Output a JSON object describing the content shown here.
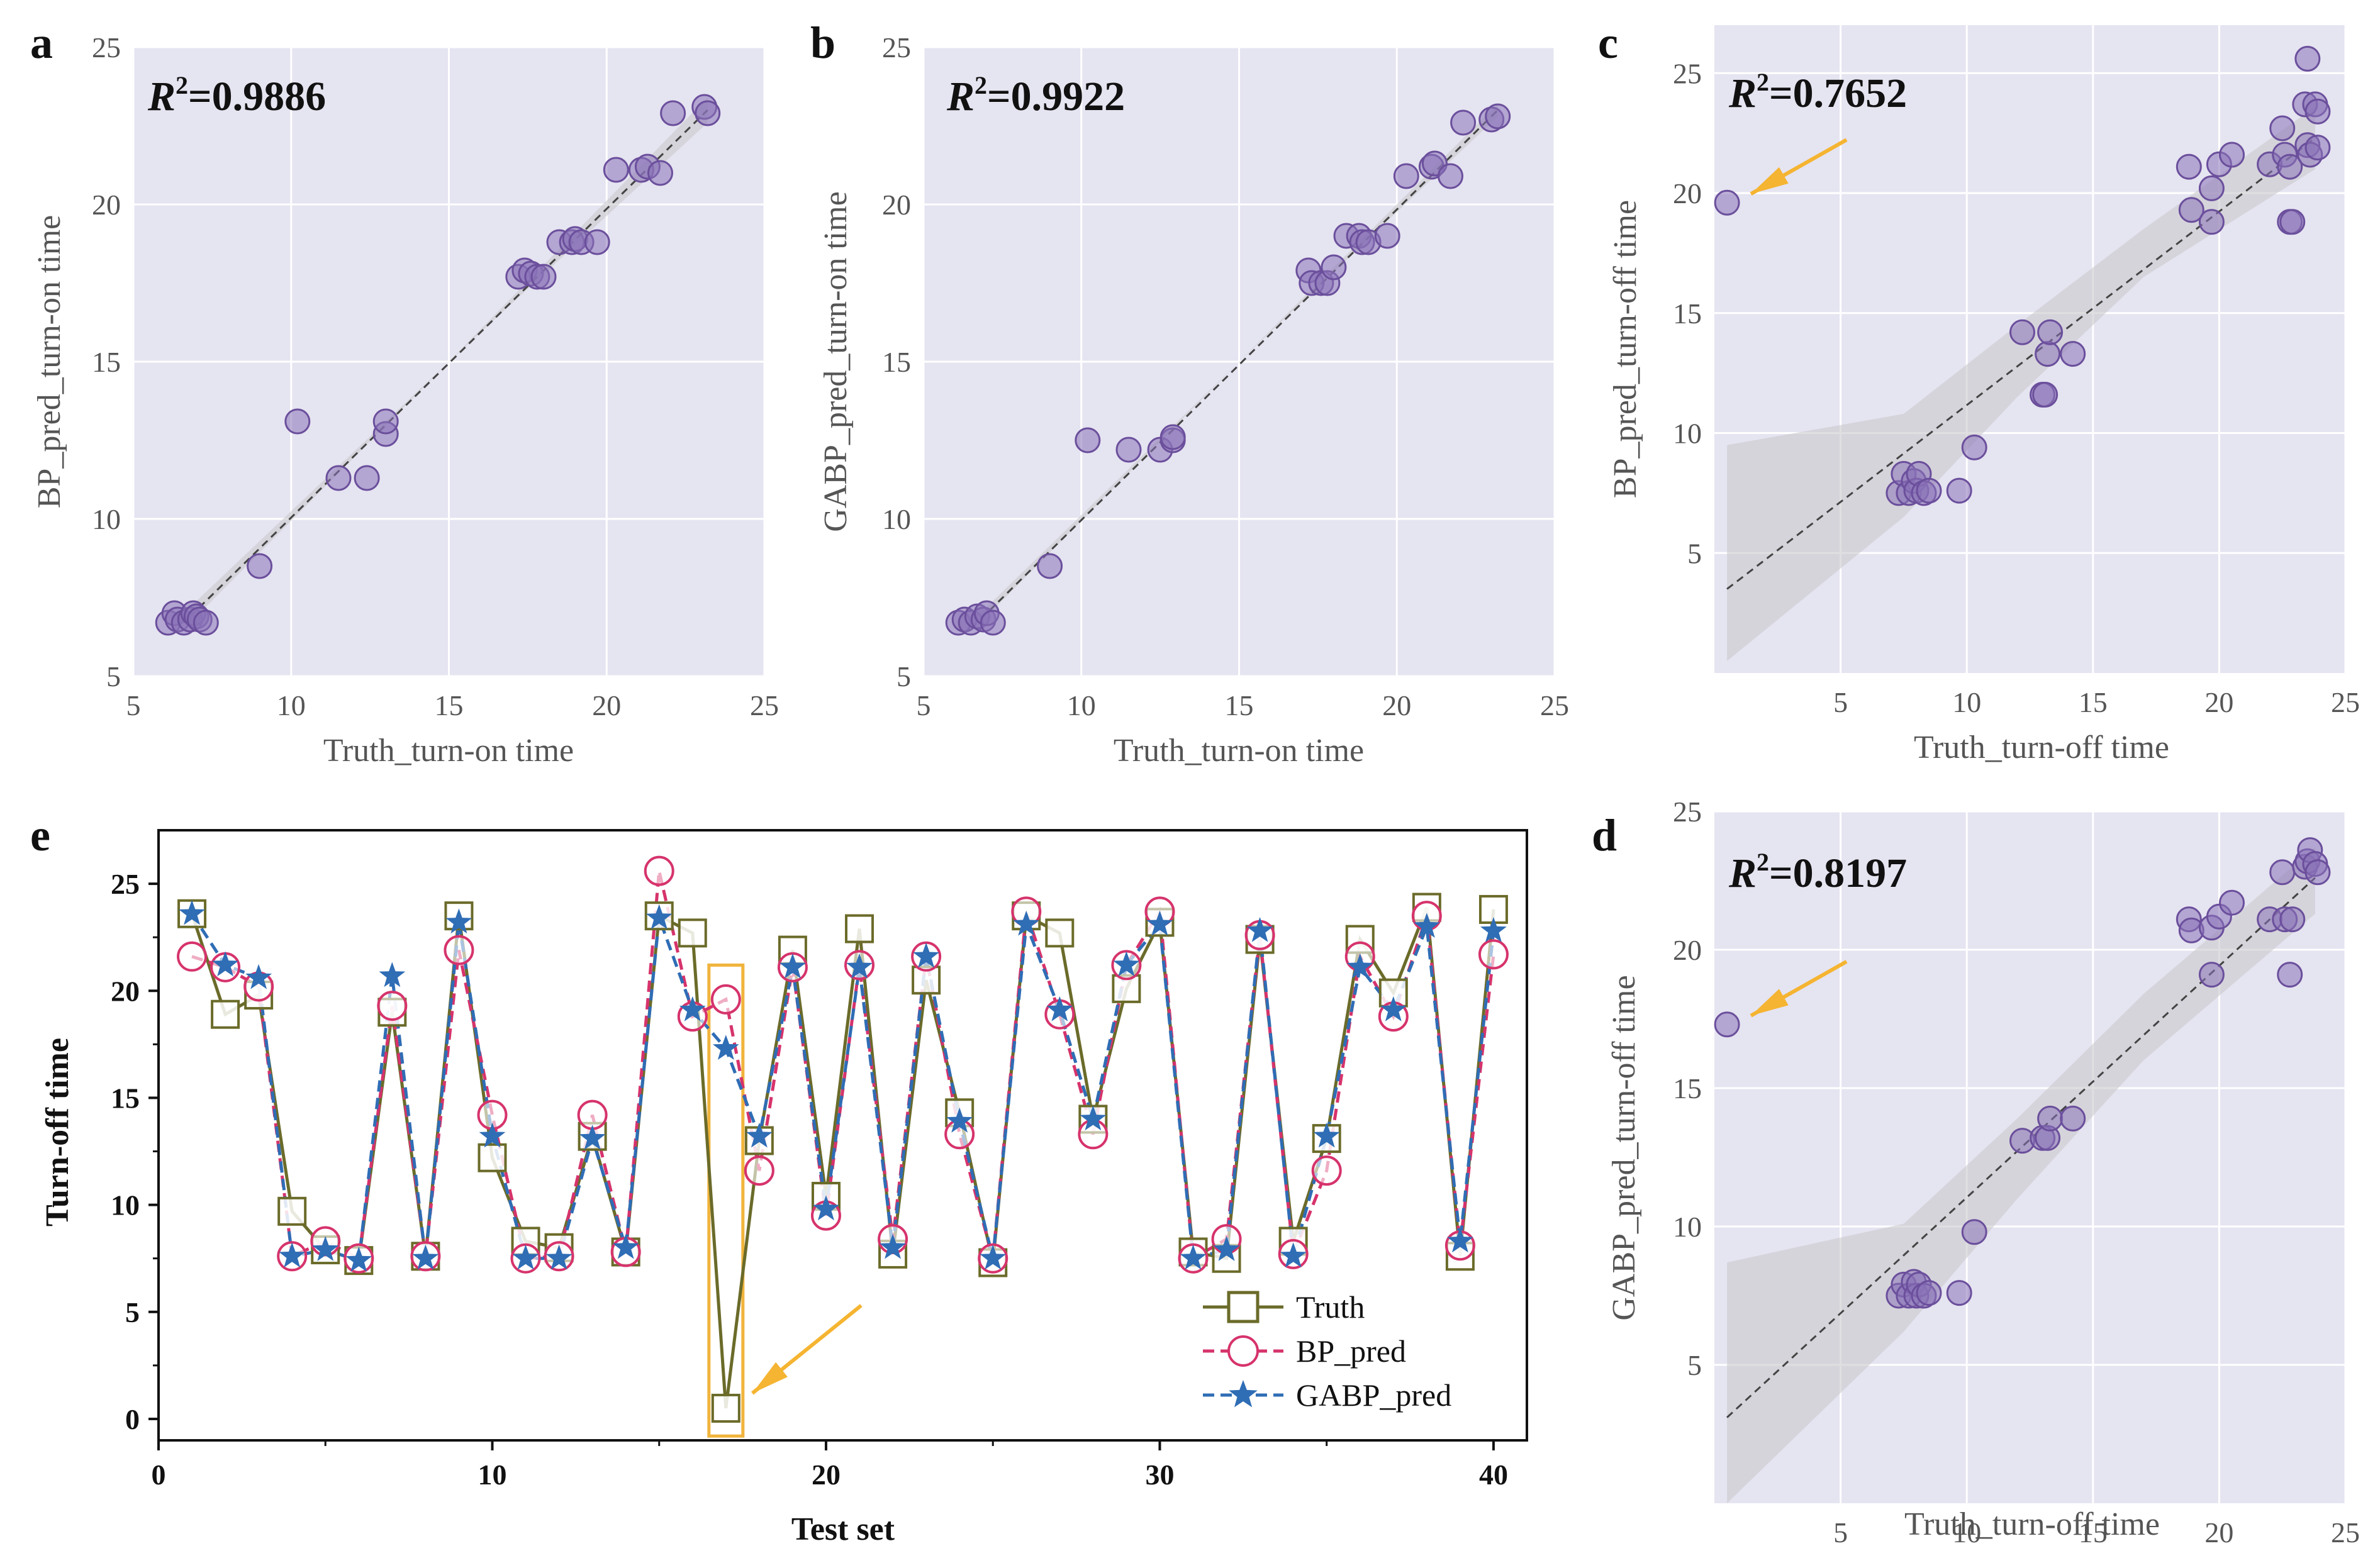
{
  "panels": [
    {
      "id": "a",
      "label": "a",
      "r2_prefix": "R",
      "r2_sup": "2",
      "r2_value": "=0.9886",
      "xlabel": "Truth_turn-on time",
      "ylabel": "BP_pred_turn-on time",
      "xlim": [
        5,
        25
      ],
      "ylim": [
        5,
        25
      ],
      "xticks": [
        5,
        10,
        15,
        20,
        25
      ],
      "yticks": [
        5,
        10,
        15,
        20,
        25
      ],
      "fit": [
        [
          6.8,
          6.9
        ],
        [
          23.2,
          23.0
        ]
      ],
      "band": [
        [
          6.8,
          6.7,
          7.2
        ],
        [
          15,
          15.0,
          15.0
        ],
        [
          23.2,
          22.6,
          23.4
        ]
      ],
      "points": [
        [
          6.1,
          6.7
        ],
        [
          6.3,
          7.0
        ],
        [
          6.4,
          6.8
        ],
        [
          6.6,
          6.7
        ],
        [
          6.8,
          6.8
        ],
        [
          6.9,
          7.0
        ],
        [
          7.0,
          6.9
        ],
        [
          7.1,
          6.8
        ],
        [
          7.3,
          6.7
        ],
        [
          9.0,
          8.5
        ],
        [
          10.2,
          13.1
        ],
        [
          11.5,
          11.3
        ],
        [
          12.4,
          11.3
        ],
        [
          13.0,
          12.7
        ],
        [
          13.0,
          13.1
        ],
        [
          17.2,
          17.7
        ],
        [
          17.4,
          17.9
        ],
        [
          17.6,
          17.8
        ],
        [
          17.8,
          17.7
        ],
        [
          18.0,
          17.7
        ],
        [
          18.5,
          18.8
        ],
        [
          18.9,
          18.8
        ],
        [
          19.0,
          18.9
        ],
        [
          19.2,
          18.8
        ],
        [
          19.7,
          18.8
        ],
        [
          20.3,
          21.1
        ],
        [
          21.1,
          21.1
        ],
        [
          21.3,
          21.2
        ],
        [
          21.7,
          21.0
        ],
        [
          22.1,
          22.9
        ],
        [
          23.1,
          23.1
        ],
        [
          23.2,
          22.9
        ]
      ]
    },
    {
      "id": "b",
      "label": "b",
      "r2_prefix": "R",
      "r2_sup": "2",
      "r2_value": "=0.9922",
      "xlabel": "Truth_turn-on time",
      "ylabel": "GABP_pred_turn-on time",
      "xlim": [
        5,
        25
      ],
      "ylim": [
        5,
        25
      ],
      "xticks": [
        5,
        10,
        15,
        20,
        25
      ],
      "yticks": [
        5,
        10,
        15,
        20,
        25
      ],
      "fit": [
        [
          6.8,
          6.8
        ],
        [
          23.2,
          23.0
        ]
      ],
      "band": [
        [
          6.8,
          6.7,
          7.0
        ],
        [
          15,
          15.0,
          15.0
        ],
        [
          23.2,
          22.8,
          23.2
        ]
      ],
      "points": [
        [
          6.1,
          6.7
        ],
        [
          6.3,
          6.8
        ],
        [
          6.5,
          6.7
        ],
        [
          6.7,
          6.9
        ],
        [
          6.9,
          6.8
        ],
        [
          7.0,
          7.0
        ],
        [
          7.2,
          6.7
        ],
        [
          9.0,
          8.5
        ],
        [
          10.2,
          12.5
        ],
        [
          11.5,
          12.2
        ],
        [
          12.5,
          12.2
        ],
        [
          12.9,
          12.5
        ],
        [
          12.9,
          12.6
        ],
        [
          17.2,
          17.9
        ],
        [
          17.3,
          17.5
        ],
        [
          17.6,
          17.5
        ],
        [
          17.8,
          17.5
        ],
        [
          18.0,
          18.0
        ],
        [
          18.4,
          19.0
        ],
        [
          18.8,
          19.0
        ],
        [
          18.9,
          18.8
        ],
        [
          19.1,
          18.8
        ],
        [
          19.7,
          19.0
        ],
        [
          20.3,
          20.9
        ],
        [
          21.1,
          21.2
        ],
        [
          21.2,
          21.3
        ],
        [
          21.7,
          20.9
        ],
        [
          22.1,
          22.6
        ],
        [
          23.0,
          22.7
        ],
        [
          23.2,
          22.8
        ]
      ]
    },
    {
      "id": "c",
      "label": "c",
      "r2_prefix": "R",
      "r2_sup": "2",
      "r2_value": "=0.7652",
      "xlabel": "Truth_turn-off time",
      "ylabel": "BP_pred_turn-off time",
      "xlim": [
        0,
        25
      ],
      "ylim": [
        0,
        27
      ],
      "xticks": [
        5,
        10,
        15,
        20,
        25
      ],
      "yticks": [
        5,
        10,
        15,
        20,
        25
      ],
      "fit": [
        [
          0.5,
          3.5
        ],
        [
          23.8,
          22.3
        ]
      ],
      "band": [
        [
          0.5,
          0.5,
          9.5
        ],
        [
          7.5,
          6.5,
          10.8
        ],
        [
          12.0,
          11.5,
          14.5
        ],
        [
          17.0,
          16.5,
          18.5
        ],
        [
          23.8,
          21.0,
          23.6
        ]
      ],
      "points": [
        [
          0.5,
          19.6
        ],
        [
          7.3,
          7.5
        ],
        [
          7.5,
          8.3
        ],
        [
          7.7,
          7.5
        ],
        [
          7.9,
          8.0
        ],
        [
          8.0,
          7.6
        ],
        [
          8.1,
          8.3
        ],
        [
          8.3,
          7.5
        ],
        [
          8.5,
          7.6
        ],
        [
          9.7,
          7.6
        ],
        [
          10.3,
          9.4
        ],
        [
          12.2,
          14.2
        ],
        [
          13.0,
          11.6
        ],
        [
          13.1,
          11.6
        ],
        [
          13.2,
          13.3
        ],
        [
          13.3,
          14.2
        ],
        [
          14.2,
          13.3
        ],
        [
          18.8,
          21.1
        ],
        [
          18.9,
          19.3
        ],
        [
          19.7,
          18.8
        ],
        [
          19.7,
          20.2
        ],
        [
          20.0,
          21.2
        ],
        [
          20.5,
          21.6
        ],
        [
          22.0,
          21.2
        ],
        [
          22.5,
          22.7
        ],
        [
          22.6,
          21.6
        ],
        [
          22.8,
          18.8
        ],
        [
          22.8,
          21.1
        ],
        [
          22.9,
          18.8
        ],
        [
          23.4,
          23.7
        ],
        [
          23.5,
          22.0
        ],
        [
          23.5,
          25.6
        ],
        [
          23.6,
          21.6
        ],
        [
          23.8,
          23.7
        ],
        [
          23.9,
          21.9
        ],
        [
          23.9,
          23.4
        ]
      ]
    },
    {
      "id": "d",
      "label": "d",
      "r2_prefix": "R",
      "r2_sup": "2",
      "r2_value": "=0.8197",
      "xlabel": "Truth_turn-off time",
      "ylabel": "GABP_pred_turn-off time",
      "xlim": [
        0,
        25
      ],
      "ylim": [
        0,
        25
      ],
      "xticks": [
        5,
        10,
        15,
        20,
        25
      ],
      "yticks": [
        5,
        10,
        15,
        20,
        25
      ],
      "fit": [
        [
          0.5,
          3.1
        ],
        [
          23.8,
          22.6
        ]
      ],
      "band": [
        [
          0.5,
          0.0,
          8.7
        ],
        [
          7.5,
          6.2,
          10.1
        ],
        [
          12.0,
          11.0,
          13.9
        ],
        [
          17.0,
          16.0,
          18.4
        ],
        [
          23.8,
          21.3,
          23.7
        ]
      ],
      "points": [
        [
          0.5,
          17.3
        ],
        [
          7.3,
          7.5
        ],
        [
          7.5,
          7.9
        ],
        [
          7.7,
          7.5
        ],
        [
          7.9,
          8.0
        ],
        [
          8.0,
          7.5
        ],
        [
          8.1,
          7.9
        ],
        [
          8.3,
          7.5
        ],
        [
          8.5,
          7.6
        ],
        [
          9.7,
          7.6
        ],
        [
          10.3,
          9.8
        ],
        [
          12.2,
          13.1
        ],
        [
          13.0,
          13.2
        ],
        [
          13.2,
          13.2
        ],
        [
          13.3,
          13.9
        ],
        [
          14.2,
          13.9
        ],
        [
          18.8,
          21.1
        ],
        [
          18.9,
          20.7
        ],
        [
          19.7,
          19.1
        ],
        [
          19.7,
          20.8
        ],
        [
          20.0,
          21.2
        ],
        [
          20.5,
          21.7
        ],
        [
          22.0,
          21.1
        ],
        [
          22.5,
          22.8
        ],
        [
          22.6,
          21.1
        ],
        [
          22.8,
          19.1
        ],
        [
          22.9,
          21.1
        ],
        [
          23.4,
          23.0
        ],
        [
          23.5,
          23.2
        ],
        [
          23.6,
          23.6
        ],
        [
          23.8,
          23.1
        ],
        [
          23.9,
          22.8
        ]
      ]
    }
  ],
  "panel_e": {
    "label": "e",
    "xlabel": "Test set",
    "ylabel": "Turn-off time",
    "xlim": [
      0,
      41
    ],
    "ylim": [
      -1,
      27.5
    ],
    "xticks": [
      0,
      10,
      20,
      30,
      40
    ],
    "yticks": [
      0,
      5,
      10,
      15,
      20,
      25
    ],
    "highlight_index": 17
  },
  "chart_data": {
    "type": "line",
    "title": "",
    "xlabel": "Test set",
    "ylabel": "Turn-off time",
    "x": [
      1,
      2,
      3,
      4,
      5,
      6,
      7,
      8,
      9,
      10,
      11,
      12,
      13,
      14,
      15,
      16,
      17,
      18,
      19,
      20,
      21,
      22,
      23,
      24,
      25,
      26,
      27,
      28,
      29,
      30,
      31,
      32,
      33,
      34,
      35,
      36,
      37,
      38,
      39,
      40
    ],
    "series": [
      {
        "name": "Truth",
        "color": "#6b6b2a",
        "values": [
          23.6,
          18.9,
          19.8,
          9.7,
          7.9,
          7.4,
          19.0,
          7.6,
          23.5,
          12.2,
          8.3,
          8.0,
          13.2,
          7.8,
          23.5,
          22.7,
          0.5,
          13.0,
          21.9,
          10.4,
          22.9,
          7.7,
          20.5,
          14.3,
          7.3,
          23.5,
          22.7,
          14.0,
          20.1,
          23.2,
          7.8,
          7.5,
          22.4,
          8.3,
          13.1,
          22.4,
          19.9,
          23.9,
          7.6,
          23.8
        ]
      },
      {
        "name": "BP_pred",
        "color": "#d6336c",
        "values": [
          21.6,
          21.1,
          20.2,
          7.6,
          8.3,
          7.5,
          19.3,
          7.6,
          21.9,
          14.2,
          7.5,
          7.6,
          14.2,
          7.8,
          25.6,
          18.8,
          19.6,
          11.6,
          21.1,
          9.5,
          21.2,
          8.4,
          21.6,
          13.3,
          7.5,
          23.7,
          18.9,
          13.3,
          21.2,
          23.7,
          7.5,
          8.4,
          22.6,
          7.7,
          11.6,
          21.6,
          18.8,
          23.5,
          8.1,
          21.7
        ]
      },
      {
        "name": "GABP_pred",
        "color": "#2f6db5",
        "values": [
          23.6,
          21.2,
          20.6,
          7.6,
          7.9,
          7.4,
          20.7,
          7.5,
          23.2,
          13.2,
          7.5,
          7.5,
          13.1,
          8.0,
          23.4,
          19.1,
          17.3,
          13.2,
          21.1,
          9.8,
          21.1,
          8.0,
          21.6,
          13.9,
          7.5,
          23.1,
          19.1,
          14.0,
          21.2,
          23.1,
          7.5,
          7.9,
          22.8,
          7.6,
          13.2,
          21.1,
          19.1,
          23.0,
          8.3,
          22.8
        ]
      }
    ],
    "panels": [
      {
        "type": "scatter",
        "id": "a",
        "xlabel": "Truth_turn-on time",
        "ylabel": "BP_pred_turn-on time",
        "r2": 0.9886
      },
      {
        "type": "scatter",
        "id": "b",
        "xlabel": "Truth_turn-on time",
        "ylabel": "GABP_pred_turn-on time",
        "r2": 0.9922
      },
      {
        "type": "scatter",
        "id": "c",
        "xlabel": "Truth_turn-off time",
        "ylabel": "BP_pred_turn-off time",
        "r2": 0.7652
      },
      {
        "type": "scatter",
        "id": "d",
        "xlabel": "Truth_turn-off time",
        "ylabel": "GABP_pred_turn-off time",
        "r2": 0.8197
      }
    ]
  },
  "colors": {
    "panel_bg": "#e5e4f1",
    "grid": "#ffffff",
    "point_fill": "#8b72b8",
    "point_stroke": "#6b4f9c",
    "arrow": "#f5b431",
    "highlight_box": "#f0b43c",
    "band": "#c9c9cd"
  }
}
